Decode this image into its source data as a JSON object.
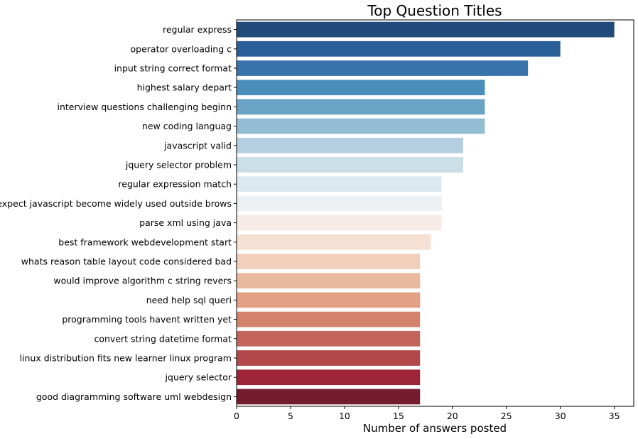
{
  "chart_data": {
    "type": "bar",
    "orientation": "horizontal",
    "title": "Top Question Titles",
    "xlabel": "Number of answers posted",
    "ylabel": "",
    "xlim": [
      0,
      36.8
    ],
    "xticks": [
      0,
      5,
      10,
      15,
      20,
      25,
      30,
      35
    ],
    "grid": false,
    "legend": "none",
    "categories": [
      "regular express",
      "operator overloading c",
      "input string correct format",
      "highest salary depart",
      "interview questions challenging beginn",
      "new coding languag",
      "javascript valid",
      "jquery selector problem",
      "regular expression match",
      "expect javascript become widely used outside brows",
      "parse xml using java",
      "best framework webdevelopment start",
      "whats reason table layout code considered bad",
      "would improve algorithm c string revers",
      "need help sql queri",
      "programming tools havent written yet",
      "convert string datetime format",
      "linux distribution fits new learner linux program",
      "jquery selector",
      "good diagramming software uml webdesign"
    ],
    "values": [
      35,
      30,
      27,
      23,
      23,
      23,
      21,
      21,
      19,
      19,
      19,
      18,
      17,
      17,
      17,
      17,
      17,
      17,
      17,
      17
    ],
    "colors": [
      "#1f4a7a",
      "#2a5f99",
      "#3873ab",
      "#4b8dbb",
      "#6aa3c6",
      "#93bdd3",
      "#b3cfe1",
      "#cbdfe9",
      "#dde9f0",
      "#edf0f3",
      "#f7ebe7",
      "#f6e0d4",
      "#f2cfbb",
      "#ebb8a0",
      "#e3a084",
      "#d4826b",
      "#c4655b",
      "#b2474b",
      "#9d2537",
      "#741b2e"
    ]
  }
}
